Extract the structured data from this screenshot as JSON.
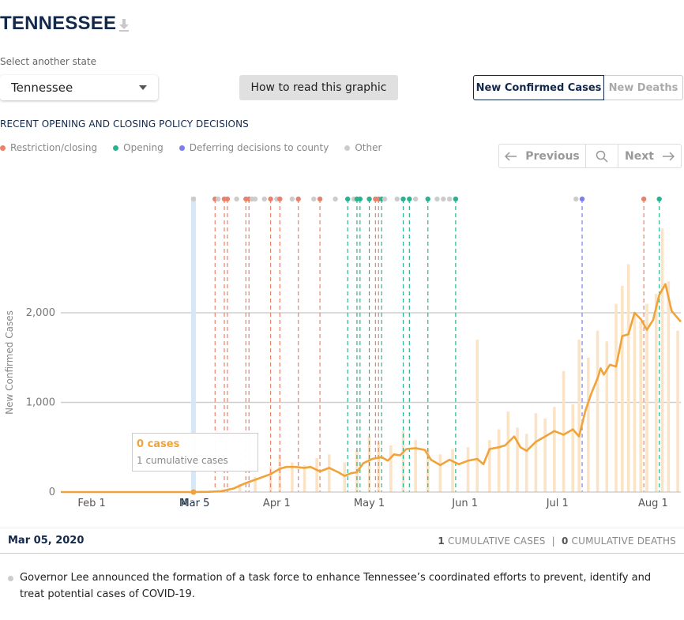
{
  "header": {
    "title": "TENNESSEE",
    "download_icon": "download-icon"
  },
  "state_select": {
    "label": "Select another state",
    "value": "Tennessee"
  },
  "how_button": "How to read this graphic",
  "tabs": [
    {
      "label": "New Confirmed Cases",
      "active": true
    },
    {
      "label": "New Deaths",
      "active": false
    }
  ],
  "policy": {
    "heading": "RECENT OPENING AND CLOSING POLICY DECISIONS",
    "legend": [
      {
        "label": "Restriction/closing",
        "color": "#e8826a"
      },
      {
        "label": "Opening",
        "color": "#2bb38f"
      },
      {
        "label": "Deferring decisions to county",
        "color": "#7b7ff0"
      },
      {
        "label": "Other",
        "color": "#cccccc"
      }
    ]
  },
  "nav": {
    "prev": "Previous",
    "next": "Next"
  },
  "chart_data": {
    "type": "line",
    "ylabel": "New Confirmed Cases",
    "ylim": [
      0,
      2000
    ],
    "yticks": [
      0,
      1000,
      2000
    ],
    "ytick_labels": [
      "0",
      "1,000",
      "2,000"
    ],
    "x_tick_labels": [
      "Feb 1",
      "M",
      "Apr 1",
      "May 1",
      "Jun 1",
      "Jul 1",
      "Aug 1"
    ],
    "selected_date_label": "Mar 5",
    "x_start": "2020-01-22",
    "x_end": "2020-08-10",
    "selected_date": "2020-03-05",
    "line_color": "#f0a33a",
    "bar_color": "#fbe3c6",
    "moving_average": [
      [
        "2020-01-22",
        0
      ],
      [
        "2020-03-05",
        0
      ],
      [
        "2020-03-10",
        3
      ],
      [
        "2020-03-14",
        10
      ],
      [
        "2020-03-18",
        40
      ],
      [
        "2020-03-22",
        100
      ],
      [
        "2020-03-26",
        150
      ],
      [
        "2020-03-30",
        200
      ],
      [
        "2020-04-02",
        260
      ],
      [
        "2020-04-04",
        280
      ],
      [
        "2020-04-07",
        280
      ],
      [
        "2020-04-10",
        270
      ],
      [
        "2020-04-12",
        280
      ],
      [
        "2020-04-15",
        230
      ],
      [
        "2020-04-18",
        270
      ],
      [
        "2020-04-21",
        220
      ],
      [
        "2020-04-23",
        180
      ],
      [
        "2020-04-25",
        210
      ],
      [
        "2020-04-27",
        220
      ],
      [
        "2020-04-29",
        320
      ],
      [
        "2020-05-02",
        370
      ],
      [
        "2020-05-05",
        390
      ],
      [
        "2020-05-07",
        350
      ],
      [
        "2020-05-09",
        420
      ],
      [
        "2020-05-11",
        410
      ],
      [
        "2020-05-13",
        480
      ],
      [
        "2020-05-16",
        490
      ],
      [
        "2020-05-19",
        470
      ],
      [
        "2020-05-21",
        360
      ],
      [
        "2020-05-24",
        300
      ],
      [
        "2020-05-27",
        360
      ],
      [
        "2020-05-30",
        310
      ],
      [
        "2020-06-02",
        350
      ],
      [
        "2020-06-05",
        370
      ],
      [
        "2020-06-07",
        310
      ],
      [
        "2020-06-09",
        480
      ],
      [
        "2020-06-12",
        500
      ],
      [
        "2020-06-14",
        520
      ],
      [
        "2020-06-17",
        620
      ],
      [
        "2020-06-19",
        500
      ],
      [
        "2020-06-21",
        460
      ],
      [
        "2020-06-24",
        560
      ],
      [
        "2020-06-27",
        620
      ],
      [
        "2020-06-30",
        680
      ],
      [
        "2020-07-03",
        640
      ],
      [
        "2020-07-06",
        700
      ],
      [
        "2020-07-08",
        620
      ],
      [
        "2020-07-10",
        900
      ],
      [
        "2020-07-12",
        1100
      ],
      [
        "2020-07-14",
        1270
      ],
      [
        "2020-07-15",
        1380
      ],
      [
        "2020-07-16",
        1310
      ],
      [
        "2020-07-18",
        1420
      ],
      [
        "2020-07-20",
        1400
      ],
      [
        "2020-07-22",
        1740
      ],
      [
        "2020-07-24",
        1760
      ],
      [
        "2020-07-26",
        2000
      ],
      [
        "2020-07-28",
        1930
      ],
      [
        "2020-07-30",
        1810
      ],
      [
        "2020-08-01",
        1920
      ],
      [
        "2020-08-03",
        2200
      ],
      [
        "2020-08-05",
        2320
      ],
      [
        "2020-08-07",
        2020
      ],
      [
        "2020-08-10",
        1900
      ]
    ],
    "daily_bars": [
      [
        "2020-03-20",
        90
      ],
      [
        "2020-03-25",
        170
      ],
      [
        "2020-03-30",
        280
      ],
      [
        "2020-04-02",
        420
      ],
      [
        "2020-04-06",
        330
      ],
      [
        "2020-04-10",
        300
      ],
      [
        "2020-04-14",
        380
      ],
      [
        "2020-04-18",
        420
      ],
      [
        "2020-04-23",
        330
      ],
      [
        "2020-04-27",
        470
      ],
      [
        "2020-05-01",
        620
      ],
      [
        "2020-05-04",
        560
      ],
      [
        "2020-05-08",
        520
      ],
      [
        "2020-05-12",
        680
      ],
      [
        "2020-05-16",
        580
      ],
      [
        "2020-05-20",
        480
      ],
      [
        "2020-05-24",
        420
      ],
      [
        "2020-05-28",
        480
      ],
      [
        "2020-06-02",
        500
      ],
      [
        "2020-06-05",
        1700
      ],
      [
        "2020-06-09",
        580
      ],
      [
        "2020-06-12",
        700
      ],
      [
        "2020-06-15",
        900
      ],
      [
        "2020-06-18",
        720
      ],
      [
        "2020-06-21",
        650
      ],
      [
        "2020-06-24",
        880
      ],
      [
        "2020-06-27",
        820
      ],
      [
        "2020-06-30",
        950
      ],
      [
        "2020-07-03",
        1350
      ],
      [
        "2020-07-06",
        980
      ],
      [
        "2020-07-08",
        1700
      ],
      [
        "2020-07-11",
        1500
      ],
      [
        "2020-07-14",
        1800
      ],
      [
        "2020-07-17",
        1680
      ],
      [
        "2020-07-20",
        2100
      ],
      [
        "2020-07-22",
        2300
      ],
      [
        "2020-07-24",
        2540
      ],
      [
        "2020-07-26",
        2000
      ],
      [
        "2020-07-28",
        1900
      ],
      [
        "2020-07-30",
        2100
      ],
      [
        "2020-08-02",
        2210
      ],
      [
        "2020-08-04",
        2940
      ],
      [
        "2020-08-06",
        2350
      ],
      [
        "2020-08-09",
        1800
      ]
    ],
    "policy_events": [
      {
        "date": "2020-03-05",
        "type": "other"
      },
      {
        "date": "2020-03-12",
        "type": "restriction"
      },
      {
        "date": "2020-03-13",
        "type": "other"
      },
      {
        "date": "2020-03-15",
        "type": "restriction"
      },
      {
        "date": "2020-03-16",
        "type": "restriction"
      },
      {
        "date": "2020-03-19",
        "type": "other"
      },
      {
        "date": "2020-03-22",
        "type": "restriction"
      },
      {
        "date": "2020-03-23",
        "type": "restriction"
      },
      {
        "date": "2020-03-24",
        "type": "other"
      },
      {
        "date": "2020-03-25",
        "type": "other"
      },
      {
        "date": "2020-03-28",
        "type": "other"
      },
      {
        "date": "2020-03-30",
        "type": "restriction"
      },
      {
        "date": "2020-04-01",
        "type": "other"
      },
      {
        "date": "2020-04-02",
        "type": "restriction"
      },
      {
        "date": "2020-04-06",
        "type": "other"
      },
      {
        "date": "2020-04-08",
        "type": "restriction"
      },
      {
        "date": "2020-04-13",
        "type": "other"
      },
      {
        "date": "2020-04-15",
        "type": "restriction"
      },
      {
        "date": "2020-04-20",
        "type": "other"
      },
      {
        "date": "2020-04-24",
        "type": "opening"
      },
      {
        "date": "2020-04-26",
        "type": "other"
      },
      {
        "date": "2020-04-27",
        "type": "opening"
      },
      {
        "date": "2020-04-28",
        "type": "opening"
      },
      {
        "date": "2020-05-01",
        "type": "opening"
      },
      {
        "date": "2020-05-03",
        "type": "restriction"
      },
      {
        "date": "2020-05-04",
        "type": "restriction"
      },
      {
        "date": "2020-05-05",
        "type": "opening"
      },
      {
        "date": "2020-05-06",
        "type": "other"
      },
      {
        "date": "2020-05-10",
        "type": "other"
      },
      {
        "date": "2020-05-12",
        "type": "opening"
      },
      {
        "date": "2020-05-14",
        "type": "opening"
      },
      {
        "date": "2020-05-16",
        "type": "other"
      },
      {
        "date": "2020-05-20",
        "type": "opening"
      },
      {
        "date": "2020-05-23",
        "type": "other"
      },
      {
        "date": "2020-05-25",
        "type": "other"
      },
      {
        "date": "2020-05-27",
        "type": "other"
      },
      {
        "date": "2020-05-29",
        "type": "opening"
      },
      {
        "date": "2020-07-07",
        "type": "other"
      },
      {
        "date": "2020-07-09",
        "type": "deferring"
      },
      {
        "date": "2020-07-29",
        "type": "restriction"
      },
      {
        "date": "2020-08-03",
        "type": "opening"
      }
    ]
  },
  "tooltip": {
    "title": "0 cases",
    "subtitle": "1 cumulative cases"
  },
  "footer": {
    "date": "Mar 05, 2020",
    "cases_value": "1",
    "cases_label": "CUMULATIVE CASES",
    "separator": "|",
    "deaths_value": "0",
    "deaths_label": "CUMULATIVE DEATHS"
  },
  "event": {
    "text": "Governor Lee announced the formation of a task force to enhance Tennessee’s coordinated efforts to prevent, identify and treat potential cases of COVID-19."
  }
}
